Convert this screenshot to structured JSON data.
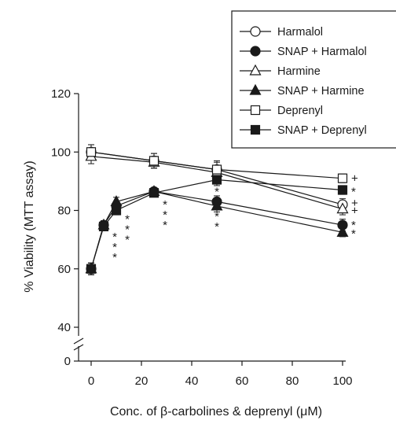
{
  "chart_data": {
    "type": "line",
    "title": "",
    "xlabel": "Conc. of β-carbolines & deprenyl (μM)",
    "ylabel": "% Viability (MTT assay)",
    "xlim": [
      -5,
      105
    ],
    "ylim": [
      0,
      120
    ],
    "axis_break": {
      "from": 5,
      "to": 35
    },
    "x_ticks": [
      0,
      20,
      40,
      60,
      80,
      100
    ],
    "y_ticks": [
      0,
      40,
      60,
      80,
      100,
      120
    ],
    "grid": false,
    "legend_position": "top-right",
    "series": [
      {
        "name": "Harmalol",
        "marker": "open-circle",
        "x": [
          0,
          25,
          50,
          100
        ],
        "y": [
          100,
          97,
          94,
          82
        ],
        "err": [
          2.5,
          2.5,
          3,
          2
        ]
      },
      {
        "name": "SNAP + Harmalol",
        "marker": "filled-circle",
        "x": [
          0,
          5,
          10,
          25,
          50,
          100
        ],
        "y": [
          60,
          75,
          81.5,
          86.5,
          83,
          75
        ],
        "err": [
          2,
          1.5,
          1.5,
          1,
          2,
          2
        ]
      },
      {
        "name": "Harmine",
        "marker": "open-triangle",
        "x": [
          0,
          25,
          50,
          100
        ],
        "y": [
          98.5,
          96.5,
          93,
          80.5
        ],
        "err": [
          2.5,
          2,
          2,
          2
        ]
      },
      {
        "name": "SNAP + Harmine",
        "marker": "filled-triangle",
        "x": [
          0,
          5,
          10,
          25,
          50,
          100
        ],
        "y": [
          60,
          75,
          83,
          86.5,
          81.5,
          72.5
        ],
        "err": [
          2,
          1.5,
          1.5,
          1,
          2,
          1.5
        ]
      },
      {
        "name": "Deprenyl",
        "marker": "open-square",
        "x": [
          0,
          25,
          50,
          100
        ],
        "y": [
          100,
          97,
          94,
          91
        ],
        "err": [
          2.5,
          2.5,
          2.5,
          1.5
        ]
      },
      {
        "name": "SNAP + Deprenyl",
        "marker": "filled-square",
        "x": [
          0,
          5,
          10,
          25,
          50,
          100
        ],
        "y": [
          60,
          74.5,
          80,
          86,
          90.5,
          87
        ],
        "err": [
          2,
          1.5,
          1.5,
          1,
          2,
          1.5
        ]
      }
    ],
    "annotations": [
      {
        "text": "*",
        "x": 5,
        "y": 71
      },
      {
        "text": "*",
        "x": 5,
        "y": 67.5
      },
      {
        "text": "*",
        "x": 5,
        "y": 64
      },
      {
        "text": "*",
        "x": 10,
        "y": 77
      },
      {
        "text": "*",
        "x": 10,
        "y": 73.5
      },
      {
        "text": "*",
        "x": 10,
        "y": 70
      },
      {
        "text": "*",
        "x": 25,
        "y": 82
      },
      {
        "text": "*",
        "x": 25,
        "y": 78.5
      },
      {
        "text": "*",
        "x": 25,
        "y": 75
      },
      {
        "text": "*",
        "x": 50,
        "y": 86.5
      },
      {
        "text": "*",
        "x": 50,
        "y": 78
      },
      {
        "text": "*",
        "x": 50,
        "y": 74.5
      },
      {
        "text": "+",
        "x": 100,
        "y": 91
      },
      {
        "text": "*",
        "x": 100,
        "y": 86.5
      },
      {
        "text": "+",
        "x": 100,
        "y": 82.5
      },
      {
        "text": "+",
        "x": 100,
        "y": 80
      },
      {
        "text": "*",
        "x": 100,
        "y": 75
      },
      {
        "text": "*",
        "x": 100,
        "y": 72
      }
    ]
  }
}
